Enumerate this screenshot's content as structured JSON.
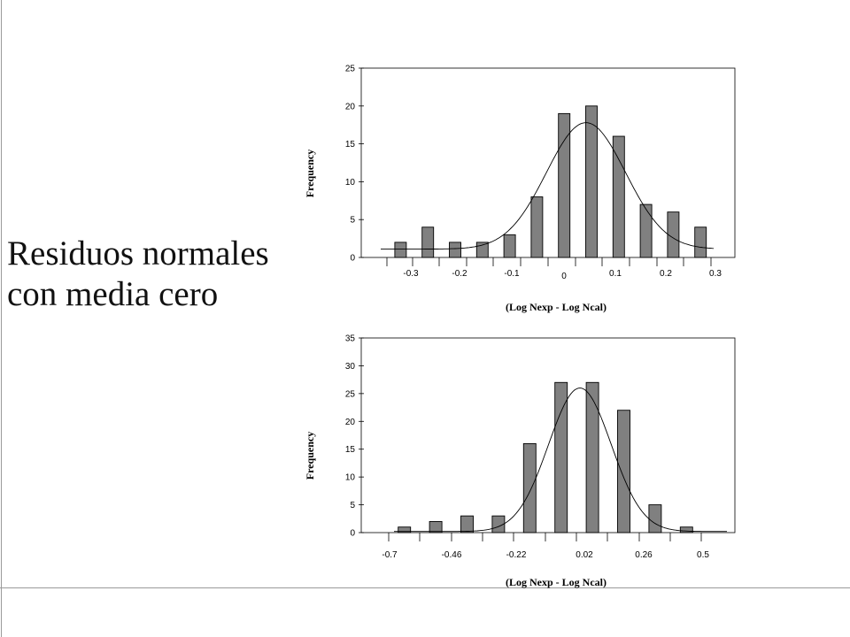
{
  "slide": {
    "title_lines": [
      "Residuos normales",
      "con media cero"
    ]
  },
  "chart_data": [
    {
      "type": "bar",
      "overlay": "normal-curve",
      "ylabel": "Frequency",
      "xlabel": "(Log Nexp - Log Ncal)",
      "ylim": [
        0,
        25
      ],
      "yticks": [
        0,
        5,
        10,
        15,
        20,
        25
      ],
      "xtick_labels": [
        "-0.3",
        "-0.2",
        "-0.1",
        "0",
        "0.1",
        "0.2",
        "0.3"
      ],
      "values": [
        2,
        4,
        2,
        2,
        3,
        8,
        19,
        20,
        16,
        7,
        6,
        4
      ],
      "curve": {
        "peak": 17.8,
        "peak_bin": 6.8,
        "spread": 1.45,
        "baseline": 1.1
      },
      "bar_color": "#808080"
    },
    {
      "type": "bar",
      "overlay": "normal-curve",
      "ylabel": "Frequency",
      "xlabel": "(Log Nexp - Log Ncal)",
      "ylim": [
        0,
        35
      ],
      "yticks": [
        0,
        5,
        10,
        15,
        20,
        25,
        30,
        35
      ],
      "xtick_labels": [
        "-0.7",
        "-0.46",
        "-0.22",
        "0.02",
        "0.26",
        "0.5"
      ],
      "values": [
        1,
        2,
        3,
        3,
        16,
        27,
        27,
        22,
        5,
        1
      ],
      "curve": {
        "peak": 26,
        "peak_bin": 5.6,
        "spread": 1.0,
        "baseline": 0.2
      },
      "bar_color": "#808080"
    }
  ]
}
